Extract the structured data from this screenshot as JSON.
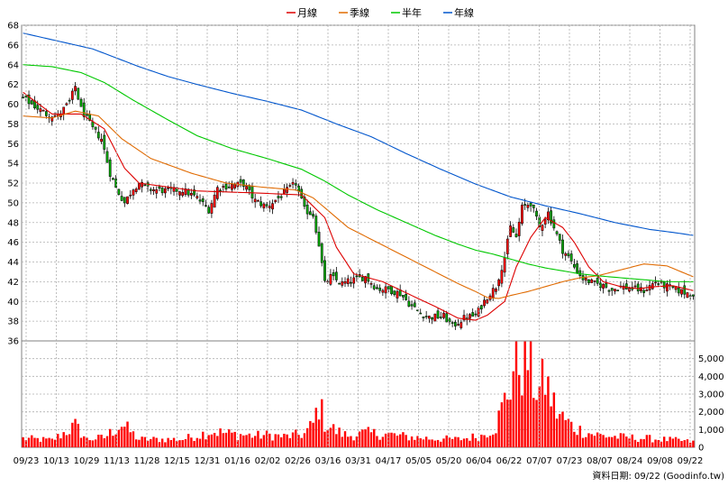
{
  "chart_data": {
    "type": "candlestick",
    "legend": [
      {
        "label": "月線",
        "color": "#dd0000"
      },
      {
        "label": "季線",
        "color": "#e06a00"
      },
      {
        "label": "半年",
        "color": "#00c800"
      },
      {
        "label": "年線",
        "color": "#0055cc"
      }
    ],
    "price_axis": {
      "ylim": [
        36,
        68
      ],
      "ticks": [
        "36",
        "38",
        "40",
        "42",
        "44",
        "46",
        "48",
        "50",
        "52",
        "54",
        "56",
        "58",
        "60",
        "62",
        "64",
        "66",
        "68"
      ]
    },
    "volume_axis": {
      "ylim": [
        0,
        6000
      ],
      "ticks": [
        "0",
        "1,000",
        "2,000",
        "3,000",
        "4,000",
        "5,000"
      ]
    },
    "x_tick_labels": [
      "09/23",
      "10/13",
      "10/29",
      "11/13",
      "11/28",
      "12/15",
      "12/31",
      "01/16",
      "02/02",
      "02/26",
      "03/16",
      "03/31",
      "04/17",
      "05/05",
      "05/20",
      "06/04",
      "06/22",
      "07/07",
      "07/23",
      "08/07",
      "08/24",
      "09/08",
      "09/22"
    ],
    "footer": "資料日期: 09/22 (Goodinfo.tw)",
    "close_anchors": [
      [
        0,
        60.6
      ],
      [
        4,
        59.8
      ],
      [
        8,
        59.0
      ],
      [
        12,
        58.8
      ],
      [
        16,
        60.2
      ],
      [
        18,
        61.8
      ],
      [
        20,
        59.5
      ],
      [
        24,
        57.5
      ],
      [
        27,
        56.5
      ],
      [
        30,
        53.0
      ],
      [
        32,
        51.5
      ],
      [
        35,
        50.0
      ],
      [
        38,
        51.5
      ],
      [
        40,
        52.0
      ],
      [
        43,
        51.4
      ],
      [
        50,
        51.2
      ],
      [
        55,
        51.3
      ],
      [
        60,
        50.5
      ],
      [
        64,
        49.3
      ],
      [
        67,
        51.5
      ],
      [
        72,
        51.8
      ],
      [
        76,
        51.9
      ],
      [
        80,
        50.2
      ],
      [
        84,
        49.6
      ],
      [
        88,
        50.5
      ],
      [
        92,
        51.5
      ],
      [
        94,
        52.0
      ],
      [
        97,
        49.3
      ],
      [
        100,
        48.8
      ],
      [
        102,
        45.8
      ],
      [
        104,
        41.8
      ],
      [
        106,
        42.5
      ],
      [
        110,
        41.8
      ],
      [
        114,
        42.2
      ],
      [
        118,
        42.5
      ],
      [
        122,
        41.3
      ],
      [
        126,
        41.2
      ],
      [
        130,
        40.8
      ],
      [
        134,
        39.5
      ],
      [
        137,
        38.8
      ],
      [
        140,
        38.4
      ],
      [
        145,
        38.5
      ],
      [
        148,
        37.5
      ],
      [
        152,
        38.3
      ],
      [
        156,
        38.6
      ],
      [
        160,
        40.5
      ],
      [
        163,
        41.5
      ],
      [
        166,
        44.5
      ],
      [
        168,
        47.5
      ],
      [
        170,
        46.5
      ],
      [
        172,
        49.5
      ],
      [
        175,
        50.0
      ],
      [
        178,
        47.5
      ],
      [
        181,
        49.0
      ],
      [
        183,
        47.5
      ],
      [
        186,
        45.2
      ],
      [
        188,
        44.5
      ],
      [
        190,
        43.5
      ],
      [
        193,
        42.3
      ],
      [
        197,
        41.8
      ],
      [
        200,
        41.6
      ],
      [
        203,
        41.2
      ],
      [
        206,
        41.5
      ],
      [
        210,
        41.3
      ],
      [
        214,
        41.1
      ],
      [
        218,
        42.0
      ],
      [
        220,
        41.7
      ],
      [
        222,
        41.5
      ],
      [
        225,
        41.2
      ],
      [
        228,
        40.9
      ],
      [
        231,
        40.8
      ]
    ],
    "volume_anchors": [
      [
        0,
        500
      ],
      [
        10,
        400
      ],
      [
        18,
        1200
      ],
      [
        22,
        450
      ],
      [
        28,
        550
      ],
      [
        34,
        1300
      ],
      [
        40,
        450
      ],
      [
        55,
        450
      ],
      [
        65,
        900
      ],
      [
        72,
        750
      ],
      [
        80,
        650
      ],
      [
        85,
        700
      ],
      [
        90,
        600
      ],
      [
        97,
        750
      ],
      [
        100,
        1300
      ],
      [
        102,
        2500
      ],
      [
        104,
        1400
      ],
      [
        108,
        900
      ],
      [
        112,
        650
      ],
      [
        118,
        800
      ],
      [
        125,
        750
      ],
      [
        132,
        600
      ],
      [
        140,
        500
      ],
      [
        150,
        450
      ],
      [
        158,
        650
      ],
      [
        163,
        1200
      ],
      [
        166,
        2600
      ],
      [
        168,
        3600
      ],
      [
        170,
        5200
      ],
      [
        172,
        4600
      ],
      [
        174,
        5000
      ],
      [
        176,
        3700
      ],
      [
        178,
        3200
      ],
      [
        180,
        3800
      ],
      [
        182,
        2800
      ],
      [
        184,
        2000
      ],
      [
        187,
        1500
      ],
      [
        190,
        1100
      ],
      [
        195,
        800
      ],
      [
        200,
        650
      ],
      [
        208,
        550
      ],
      [
        215,
        500
      ],
      [
        220,
        450
      ],
      [
        225,
        400
      ],
      [
        231,
        300
      ]
    ],
    "ma_lines": {
      "月線": [
        [
          0,
          61.2
        ],
        [
          10,
          59.0
        ],
        [
          20,
          59.0
        ],
        [
          28,
          57.5
        ],
        [
          35,
          53.5
        ],
        [
          40,
          52.0
        ],
        [
          60,
          51.2
        ],
        [
          80,
          51.0
        ],
        [
          96,
          50.8
        ],
        [
          104,
          48.5
        ],
        [
          108,
          45.5
        ],
        [
          114,
          42.8
        ],
        [
          124,
          42.0
        ],
        [
          134,
          40.6
        ],
        [
          142,
          39.5
        ],
        [
          150,
          38.3
        ],
        [
          156,
          38.1
        ],
        [
          160,
          38.6
        ],
        [
          166,
          40.0
        ],
        [
          170,
          43.5
        ],
        [
          175,
          46.5
        ],
        [
          180,
          48.5
        ],
        [
          186,
          47.5
        ],
        [
          190,
          46.0
        ],
        [
          195,
          43.5
        ],
        [
          200,
          42.0
        ],
        [
          206,
          41.5
        ],
        [
          212,
          41.3
        ],
        [
          218,
          41.5
        ],
        [
          224,
          41.6
        ],
        [
          231,
          41.1
        ]
      ],
      "季線": [
        [
          0,
          58.8
        ],
        [
          10,
          58.6
        ],
        [
          18,
          59.3
        ],
        [
          26,
          58.8
        ],
        [
          34,
          56.5
        ],
        [
          44,
          54.5
        ],
        [
          58,
          53.0
        ],
        [
          70,
          52.0
        ],
        [
          82,
          51.6
        ],
        [
          94,
          51.3
        ],
        [
          100,
          50.5
        ],
        [
          106,
          49.0
        ],
        [
          112,
          47.5
        ],
        [
          122,
          46.0
        ],
        [
          132,
          44.5
        ],
        [
          142,
          43.0
        ],
        [
          150,
          41.8
        ],
        [
          156,
          41.0
        ],
        [
          160,
          40.4
        ],
        [
          164,
          40.3
        ],
        [
          168,
          40.6
        ],
        [
          174,
          41.0
        ],
        [
          180,
          41.5
        ],
        [
          186,
          42.0
        ],
        [
          192,
          42.4
        ],
        [
          198,
          42.6
        ],
        [
          206,
          43.2
        ],
        [
          214,
          43.8
        ],
        [
          222,
          43.6
        ],
        [
          231,
          42.5
        ]
      ],
      "半年": [
        [
          0,
          64.0
        ],
        [
          10,
          63.8
        ],
        [
          20,
          63.2
        ],
        [
          28,
          62.2
        ],
        [
          38,
          60.4
        ],
        [
          50,
          58.4
        ],
        [
          60,
          56.8
        ],
        [
          72,
          55.5
        ],
        [
          84,
          54.5
        ],
        [
          96,
          53.4
        ],
        [
          104,
          52.2
        ],
        [
          112,
          50.8
        ],
        [
          122,
          49.3
        ],
        [
          132,
          48.0
        ],
        [
          142,
          46.7
        ],
        [
          150,
          45.8
        ],
        [
          156,
          45.2
        ],
        [
          162,
          44.8
        ],
        [
          168,
          44.3
        ],
        [
          174,
          43.8
        ],
        [
          180,
          43.4
        ],
        [
          186,
          43.1
        ],
        [
          192,
          42.8
        ],
        [
          198,
          42.6
        ],
        [
          206,
          42.4
        ],
        [
          214,
          42.2
        ],
        [
          222,
          42.0
        ],
        [
          231,
          42.0
        ]
      ],
      "年線": [
        [
          0,
          67.2
        ],
        [
          12,
          66.4
        ],
        [
          24,
          65.6
        ],
        [
          32,
          64.7
        ],
        [
          40,
          63.8
        ],
        [
          50,
          62.8
        ],
        [
          60,
          62.0
        ],
        [
          72,
          61.1
        ],
        [
          84,
          60.3
        ],
        [
          96,
          59.4
        ],
        [
          108,
          58.0
        ],
        [
          120,
          56.7
        ],
        [
          132,
          55.0
        ],
        [
          144,
          53.4
        ],
        [
          156,
          51.9
        ],
        [
          168,
          50.6
        ],
        [
          180,
          49.7
        ],
        [
          192,
          48.9
        ],
        [
          204,
          48.0
        ],
        [
          216,
          47.3
        ],
        [
          224,
          47.0
        ],
        [
          231,
          46.7
        ]
      ]
    }
  }
}
